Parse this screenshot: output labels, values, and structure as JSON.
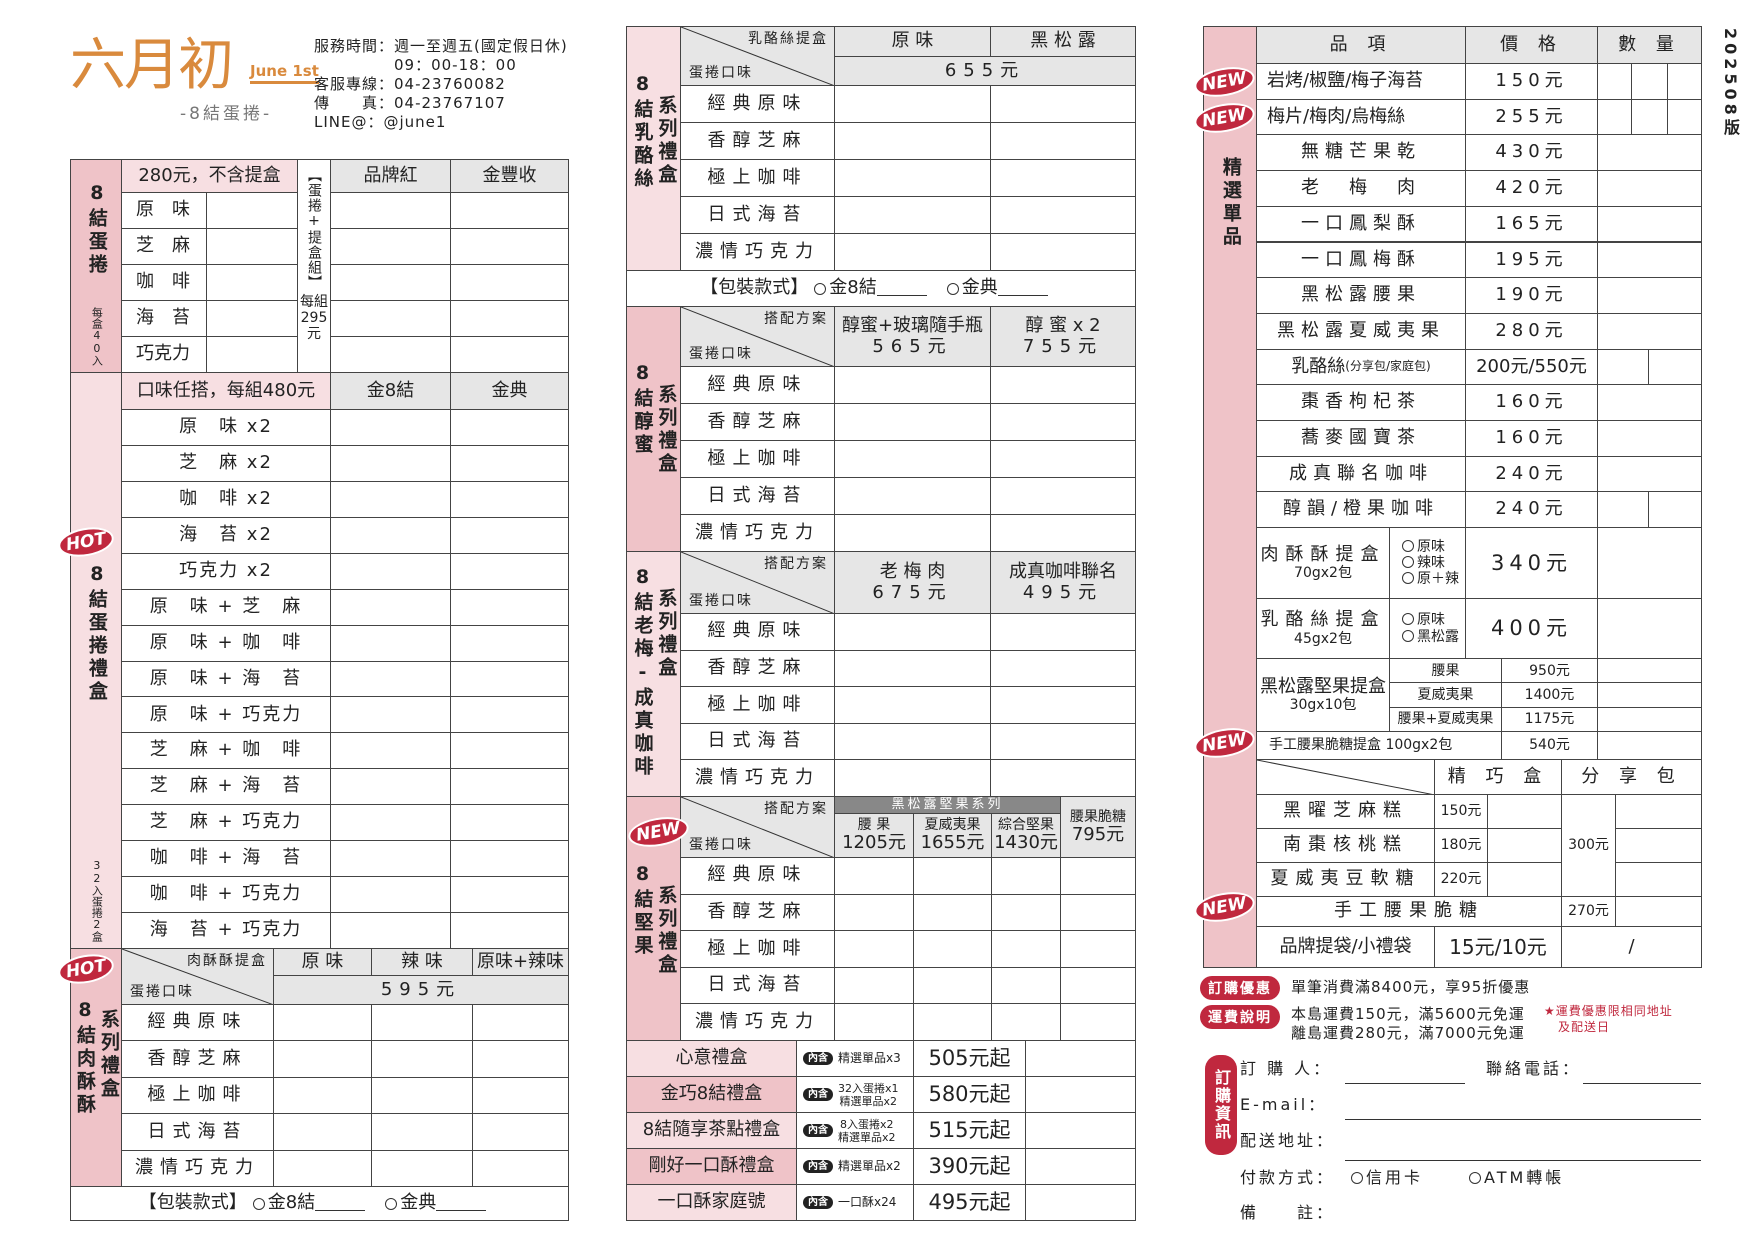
{
  "colors": {
    "pink": "#efc3c8",
    "light_pink": "#f7dfe2",
    "header_gray": "#e6e6e6",
    "badge_red": "#c0283e",
    "brand_orange": "#d98a3d"
  },
  "header": {
    "brand": "六月初",
    "brand_en": "June 1st",
    "brand_sub": "-8結蛋捲-",
    "contact": [
      "服務時間：週一至週五(國定假日休)",
      "09：00-18：00",
      "客服專線：04-23760082",
      "傳　　真：04-23767107",
      "LINE@：@june1"
    ],
    "version": "202508版"
  },
  "badges": {
    "new": "NEW",
    "hot": "HOT",
    "contains": "內含"
  },
  "packaging": {
    "label": "【包裝款式】",
    "opt1": "金8結",
    "opt2": "金典"
  },
  "flavors_long": [
    "經典原味",
    "香醇芝麻",
    "極上咖啡",
    "日式海苔",
    "濃情巧克力"
  ],
  "diag_bottom": "蛋捲口味",
  "diag_plan": "搭配方案",
  "left": {
    "s1": {
      "side": "8結蛋捲",
      "side_note": "每盒40入",
      "price_note": "280元，不含提盒",
      "flavors": [
        "原　味",
        "芝　麻",
        "咖　啡",
        "海　苔",
        "巧克力"
      ],
      "set_label": "【蛋捲+提盒組】",
      "set_price": "每組295元",
      "cols": [
        "品牌紅",
        "金豐收"
      ]
    },
    "s2": {
      "side": "8結蛋捲禮盒",
      "side_note": "32入蛋捲2盒",
      "header": "口味任搭，每組480元",
      "cols": [
        "金8結",
        "金典"
      ],
      "combos": [
        "原　味 x2",
        "芝　麻 x2",
        "咖　啡 x2",
        "海　苔 x2",
        "巧克力 x2",
        "原　味 + 芝　麻",
        "原　味 + 咖　啡",
        "原　味 + 海　苔",
        "原　味 + 巧克力",
        "芝　麻 + 咖　啡",
        "芝　麻 + 海　苔",
        "芝　麻 + 巧克力",
        "咖　啡 + 海　苔",
        "咖　啡 + 巧克力",
        "海　苔 + 巧克力"
      ]
    },
    "s3": {
      "side": [
        "8結肉酥酥",
        "系列禮盒"
      ],
      "diag_top": "肉酥酥提盒",
      "cols": [
        "原 味",
        "辣 味",
        "原味+辣味"
      ],
      "price": "595元"
    }
  },
  "middle": {
    "s1": {
      "side": [
        "8結乳酪絲",
        "系列禮盒"
      ],
      "diag_top": "乳酪絲提盒",
      "cols": [
        "原 味",
        "黑 松 露"
      ],
      "price": "655元"
    },
    "s2": {
      "side": [
        "8結醇蜜",
        "系列禮盒"
      ],
      "cols": [
        {
          "name": "醇蜜+玻璃隨手瓶",
          "price": "565元"
        },
        {
          "name": "醇 蜜 x 2",
          "price": "755元"
        }
      ]
    },
    "s3": {
      "side": [
        "8結老梅-成真咖啡",
        "系列禮盒"
      ],
      "cols": [
        {
          "name": "老 梅 肉",
          "price": "675元"
        },
        {
          "name": "成真咖啡聯名",
          "price": "495元"
        }
      ]
    },
    "s4": {
      "side": [
        "8結堅果",
        "系列禮盒"
      ],
      "group": "黑松露堅果系列",
      "cols": [
        {
          "name": "腰 果",
          "price": "1205元"
        },
        {
          "name": "夏威夷果",
          "price": "1655元"
        },
        {
          "name": "綜合堅果",
          "price": "1430元"
        }
      ],
      "extra": {
        "name": "腰果脆糖",
        "price": "795元"
      }
    },
    "gifts": [
      {
        "name": "心意禮盒",
        "contents": [
          "精選單品x3"
        ],
        "price": "505元起"
      },
      {
        "name": "金巧8結禮盒",
        "contents": [
          "32入蛋捲x1",
          "精選單品x2"
        ],
        "price": "580元起"
      },
      {
        "name": "8結隨享茶點禮盒",
        "contents": [
          "8入蛋捲x2",
          "精選單品x2"
        ],
        "price": "515元起"
      },
      {
        "name": "剛好一口酥禮盒",
        "contents": [
          "精選單品x2"
        ],
        "price": "390元起"
      },
      {
        "name": "一口酥家庭號",
        "contents": [
          "一口酥x24"
        ],
        "price": "495元起"
      }
    ]
  },
  "right": {
    "side": "精選單品",
    "cols": [
      "品 項",
      "價 格",
      "數 量"
    ],
    "items": [
      {
        "name": "岩烤/椒鹽/梅子海苔",
        "price": "150元",
        "new": true
      },
      {
        "name": "梅片/梅肉/烏梅絲",
        "price": "255元",
        "new": true
      },
      {
        "name": "無糖芒果乾",
        "price": "430元"
      },
      {
        "name": "老　梅　肉",
        "price": "420元"
      },
      {
        "name": "一口鳳梨酥",
        "price": "165元"
      },
      {
        "name": "一口鳳梅酥",
        "price": "195元"
      },
      {
        "name": "黑松露腰果",
        "price": "190元"
      },
      {
        "name": "黑松露夏威夷果",
        "price": "280元"
      },
      {
        "name": "乳酪絲",
        "name_note": "(分享包/家庭包)",
        "price": "200元/550元"
      },
      {
        "name": "棗香枸杞茶",
        "price": "160元"
      },
      {
        "name": "蕎麥國寶茶",
        "price": "160元"
      },
      {
        "name": "成真聯名咖啡",
        "price": "240元"
      },
      {
        "name": "醇韻/橙果咖啡",
        "price": "240元"
      }
    ],
    "meat_box": {
      "name": "肉酥酥提盒",
      "spec": "70gx2包",
      "options": [
        "原味",
        "辣味",
        "原＋辣"
      ],
      "price": "340元"
    },
    "cheese_box": {
      "name": "乳酪絲提盒",
      "spec": "45gx2包",
      "options": [
        "原味",
        "黑松露"
      ],
      "price": "400元"
    },
    "nut_box": {
      "name": "黑松露堅果提盒",
      "spec": "30gx10包",
      "options": [
        {
          "name": "腰果",
          "price": "950元"
        },
        {
          "name": "夏威夷果",
          "price": "1400元"
        },
        {
          "name": "腰果+夏威夷果",
          "price": "1175元"
        }
      ]
    },
    "brittle_box": {
      "name": "手工腰果脆糖提盒 100gx2包",
      "price": "540元"
    },
    "cakes": {
      "cols": [
        "精 巧 盒",
        "分 享 包"
      ],
      "items": [
        {
          "name": "黑曜芝麻糕",
          "price": "150元"
        },
        {
          "name": "南棗核桃糕",
          "price": "180元"
        },
        {
          "name": "夏威夷豆軟糖",
          "price": "220元"
        }
      ],
      "share_price": "300元"
    },
    "brittle": {
      "name": "手工腰果脆糖",
      "price": "270元"
    },
    "bag": {
      "name": "品牌提袋/小禮袋",
      "price": "15元/10元",
      "qty": "/"
    }
  },
  "footer": {
    "discount_label": "訂購優惠",
    "discount": "單筆消費滿8400元，享95折優惠",
    "shipping_label": "運費說明",
    "shipping": [
      "本島運費150元，滿5600元免運",
      "離島運費280元，滿7000元免運"
    ],
    "shipping_note": [
      "★運費優惠限相同地址",
      "及配送日"
    ],
    "order_label": "訂購資訊",
    "fields": {
      "name": "訂 購 人：",
      "phone": "聯絡電話：",
      "email": "E-mail：",
      "address": "配送地址：",
      "payment": "付款方式：",
      "memo": "備　　註："
    },
    "payment_options": [
      "信用卡",
      "ATM轉帳"
    ]
  }
}
